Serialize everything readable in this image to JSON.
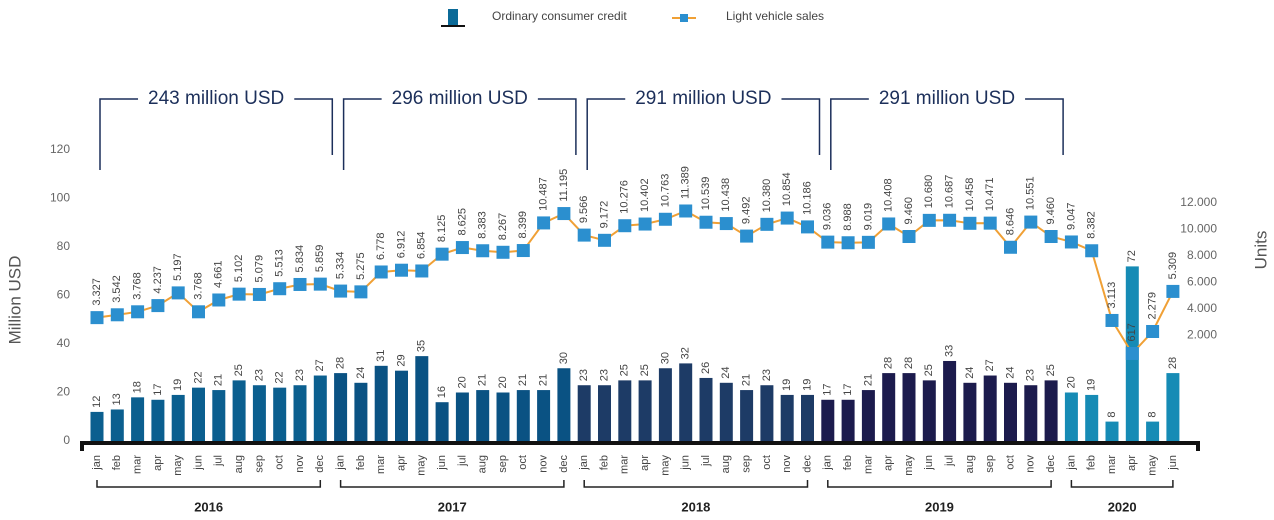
{
  "chart_data": {
    "type": "bar_line",
    "groups": [
      {
        "label": "2016",
        "color": "#0b5f8f",
        "categories": [
          "jan",
          "feb",
          "mar",
          "apr",
          "may",
          "jun",
          "jul",
          "aug",
          "sep",
          "oct",
          "nov",
          "dec"
        ]
      },
      {
        "label": "2017",
        "color": "#0a5283",
        "categories": [
          "jan",
          "feb",
          "mar",
          "apr",
          "may",
          "jun",
          "jul",
          "aug",
          "sep",
          "oct",
          "nov",
          "dec"
        ]
      },
      {
        "label": "2018",
        "color": "#1d3b66",
        "categories": [
          "jan",
          "feb",
          "mar",
          "apr",
          "may",
          "jun",
          "jul",
          "aug",
          "sep",
          "oct",
          "nov",
          "dec"
        ]
      },
      {
        "label": "2019",
        "color": "#1c1b4d",
        "categories": [
          "jan",
          "feb",
          "mar",
          "apr",
          "may",
          "jun",
          "jul",
          "aug",
          "sep",
          "oct",
          "nov",
          "dec"
        ]
      },
      {
        "label": "2020",
        "color": "#168bb5",
        "categories": [
          "jan",
          "feb",
          "mar",
          "apr",
          "may",
          "jun"
        ]
      }
    ],
    "group_totals": [
      "243 million USD",
      "296  million USD",
      "291  million USD",
      "291  million USD"
    ],
    "series": [
      {
        "name": "Ordinary consumer credit",
        "color": "#0b6a98",
        "values": [
          12,
          13,
          18,
          17,
          19,
          22,
          21,
          25,
          23,
          22,
          23,
          27,
          28,
          24,
          31,
          29,
          35,
          16,
          20,
          21,
          20,
          21,
          21,
          30,
          23,
          23,
          25,
          25,
          30,
          32,
          26,
          24,
          21,
          23,
          19,
          19,
          17,
          17,
          21,
          28,
          28,
          25,
          33,
          24,
          27,
          24,
          23,
          25,
          20,
          19,
          8,
          72,
          8,
          28
        ]
      },
      {
        "name": "Light vehicle sales",
        "color": "#f0a035",
        "marker_color": "#2b8fcf",
        "axis": "y2",
        "values": [
          3327,
          3542,
          3768,
          4237,
          5197,
          3768,
          4661,
          5102,
          5079,
          5513,
          5834,
          5859,
          5334,
          5275,
          6778,
          6912,
          6854,
          8125,
          8625,
          8383,
          8267,
          8399,
          10487,
          11195,
          9566,
          9172,
          10276,
          10402,
          10763,
          11389,
          10539,
          10438,
          9492,
          10380,
          10854,
          10186,
          9036,
          8988,
          9019,
          10408,
          9460,
          10680,
          10687,
          10458,
          10471,
          8646,
          10551,
          9460,
          9047,
          8382,
          3113,
          617,
          2279,
          5309
        ],
        "value_labels": [
          "3.327",
          "3.542",
          "3.768",
          "4.237",
          "5.197",
          "3.768",
          "4.661",
          "5.102",
          "5.079",
          "5.513",
          "5.834",
          "5.859",
          "5.334",
          "5.275",
          "6.778",
          "6.912",
          "6.854",
          "8.125",
          "8.625",
          "8.383",
          "8.267",
          "8.399",
          "10.487",
          "11.195",
          "9.566",
          "9.172",
          "10.276",
          "10.402",
          "10.763",
          "11.389",
          "10.539",
          "10.438",
          "9.492",
          "10.380",
          "10.854",
          "10.186",
          "9.036",
          "8.988",
          "9.019",
          "10.408",
          "9.460",
          "10.680",
          "10.687",
          "10.458",
          "10.471",
          "8.646",
          "10.551",
          "9.460",
          "9.047",
          "8.382",
          "3.113",
          "617",
          "2.279",
          "5.309"
        ]
      }
    ],
    "y_label": "Million USD",
    "y2_label": "Units",
    "ylim": [
      0,
      120
    ],
    "yticks": [
      0,
      20,
      40,
      60,
      80,
      100,
      120
    ],
    "y2lim": [
      -6000,
      16000
    ],
    "y2ticks": [
      {
        "value": 2000,
        "label": "2.000"
      },
      {
        "value": 4000,
        "label": "4.000"
      },
      {
        "value": 6000,
        "label": "6.000"
      },
      {
        "value": 8000,
        "label": "8.000"
      },
      {
        "value": 10000,
        "label": "10.000"
      },
      {
        "value": 12000,
        "label": "12.000"
      }
    ]
  }
}
